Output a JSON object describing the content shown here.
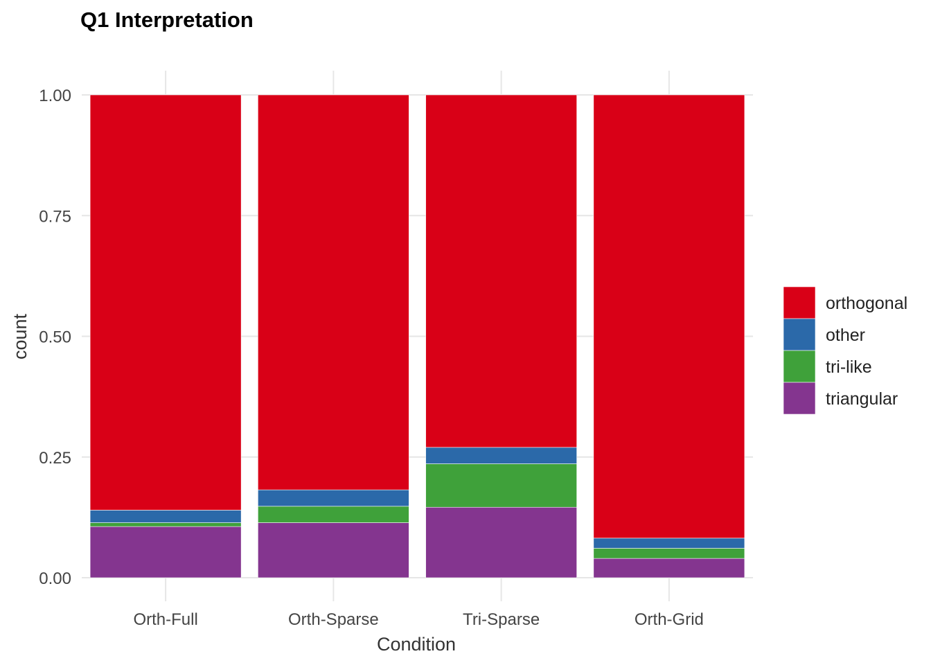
{
  "chart_data": {
    "type": "bar",
    "stacked": true,
    "title": "Q1 Interpretation",
    "xlabel": "Condition",
    "ylabel": "count",
    "ylim": [
      0,
      1
    ],
    "yticks": [
      "0.00",
      "0.25",
      "0.50",
      "0.75",
      "1.00"
    ],
    "ytick_values": [
      0,
      0.25,
      0.5,
      0.75,
      1.0
    ],
    "grid": true,
    "legend_position": "right",
    "categories": [
      "Orth-Full",
      "Orth-Sparse",
      "Tri-Sparse",
      "Orth-Grid"
    ],
    "series": [
      {
        "name": "triangular",
        "color": "#84358f",
        "values": [
          0.106,
          0.114,
          0.146,
          0.04
        ]
      },
      {
        "name": "tri-like",
        "color": "#3fa13a",
        "values": [
          0.008,
          0.034,
          0.09,
          0.021
        ]
      },
      {
        "name": "other",
        "color": "#2b69a9",
        "values": [
          0.026,
          0.034,
          0.034,
          0.021
        ]
      },
      {
        "name": "orthogonal",
        "color": "#d90017",
        "values": [
          0.86,
          0.818,
          0.73,
          0.918
        ]
      }
    ],
    "legend_order": [
      "orthogonal",
      "other",
      "tri-like",
      "triangular"
    ]
  }
}
